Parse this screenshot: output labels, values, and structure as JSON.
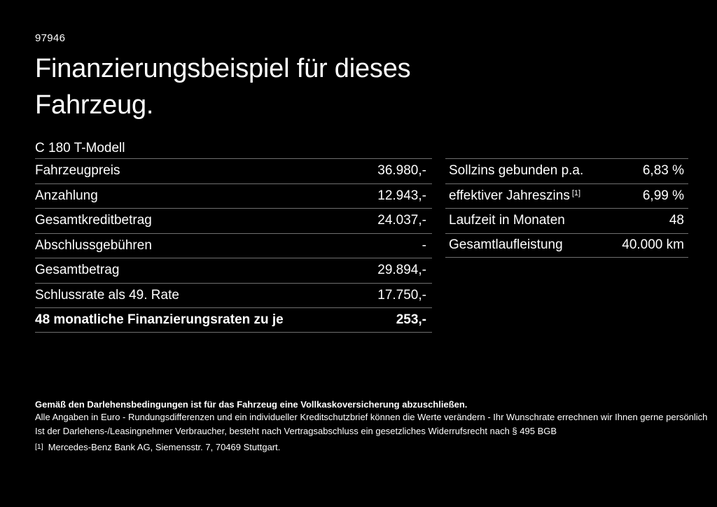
{
  "page": {
    "ref_number": "97946",
    "title_line1": "Finanzierungsbeispiel für dieses",
    "title_line2": "Fahrzeug.",
    "model": "C 180 T-Modell"
  },
  "finance_table": {
    "rows": [
      {
        "label": "Fahrzeugpreis",
        "value": "36.980,-"
      },
      {
        "label": "Anzahlung",
        "value": "12.943,-"
      },
      {
        "label": "Gesamtkreditbetrag",
        "value": "24.037,-"
      },
      {
        "label": "Abschlussgebühren",
        "value": "-"
      },
      {
        "label": "Gesamtbetrag",
        "value": "29.894,-"
      },
      {
        "label": "Schlussrate als 49. Rate",
        "value": "17.750,-"
      },
      {
        "label": "48 monatliche Finanzierungsraten zu je",
        "value": "253,-"
      }
    ]
  },
  "conditions_table": {
    "rows": [
      {
        "label": "Sollzins gebunden p.a.",
        "sup": "",
        "value": "6,83 %"
      },
      {
        "label": "effektiver Jahreszins",
        "sup": "[1]",
        "value": "6,99 %"
      },
      {
        "label": "Laufzeit in Monaten",
        "sup": "",
        "value": "48"
      },
      {
        "label": "Gesamtlaufleistung",
        "sup": "",
        "value": "40.000 km"
      }
    ]
  },
  "footer": {
    "insurance_note": "Gemäß den Darlehensbedingungen ist für das Fahrzeug eine Vollkaskoversicherung abzuschließen.",
    "note_line1": "Alle Angaben in Euro - Rundungsdifferenzen und ein individueller Kreditschutzbrief können die Werte verändern - Ihr Wunschrate errechnen wir Ihnen gerne persönlich",
    "note_line2": "Ist der Darlehens-/Leasingnehmer Verbraucher, besteht nach Vertragsabschluss ein gesetzliches Widerrufsrecht nach § 495 BGB",
    "footnote_marker": "[1]",
    "footnote_text": "Mercedes-Benz Bank AG, Siemensstr. 7, 70469 Stuttgart."
  },
  "colors": {
    "background": "#000000",
    "text": "#ffffff",
    "divider": "#6f6f6f"
  }
}
